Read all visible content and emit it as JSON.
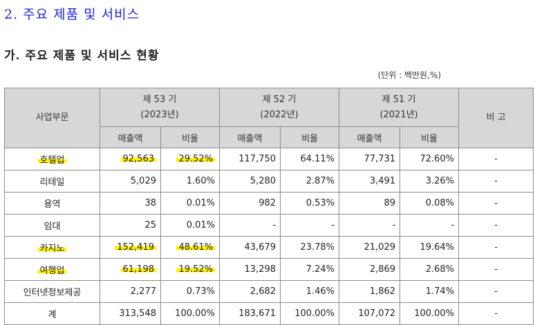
{
  "section_title": "2. 주요 제품 및 서비스",
  "sub_title": "가. 주요 제품 및 서비스 현황",
  "unit_note": "(단위 : 백만원,%)",
  "table": {
    "header_segment": "사업부문",
    "header_note": "비 고",
    "periods": [
      {
        "term": "제 53 기",
        "year": "(2023년)"
      },
      {
        "term": "제 52 기",
        "year": "(2022년)"
      },
      {
        "term": "제 51 기",
        "year": "(2021년)"
      }
    ],
    "sub_headers": [
      "매출액",
      "비율",
      "매출액",
      "비율",
      "매출액",
      "비율"
    ],
    "rows": [
      {
        "segment": "호텔업",
        "cells": [
          "92,563",
          "29.52%",
          "117,750",
          "64.11%",
          "77,731",
          "72.60%"
        ],
        "note": "-"
      },
      {
        "segment": "리테일",
        "cells": [
          "5,029",
          "1.60%",
          "5,280",
          "2.87%",
          "3,491",
          "3.26%"
        ],
        "note": "-"
      },
      {
        "segment": "용역",
        "cells": [
          "38",
          "0.01%",
          "982",
          "0.53%",
          "89",
          "0.08%"
        ],
        "note": "-"
      },
      {
        "segment": "임대",
        "cells": [
          "25",
          "0.01%",
          "-",
          "-",
          "-",
          "-"
        ],
        "note": "-"
      },
      {
        "segment": "카지노",
        "cells": [
          "152,419",
          "48.61%",
          "43,679",
          "23.78%",
          "21,029",
          "19.64%"
        ],
        "note": "-"
      },
      {
        "segment": "여행업",
        "cells": [
          "61,198",
          "19.52%",
          "13,298",
          "7.24%",
          "2,869",
          "2.68%"
        ],
        "note": "-"
      },
      {
        "segment": "인터넷정보제공",
        "cells": [
          "2,277",
          "0.73%",
          "2,682",
          "1.46%",
          "1,862",
          "1.74%"
        ],
        "note": "-"
      },
      {
        "segment": "계",
        "cells": [
          "313,548",
          "100.00%",
          "183,671",
          "100.00%",
          "107,072",
          "100.00%"
        ],
        "note": "-"
      }
    ]
  },
  "highlight_color": "#fff200"
}
